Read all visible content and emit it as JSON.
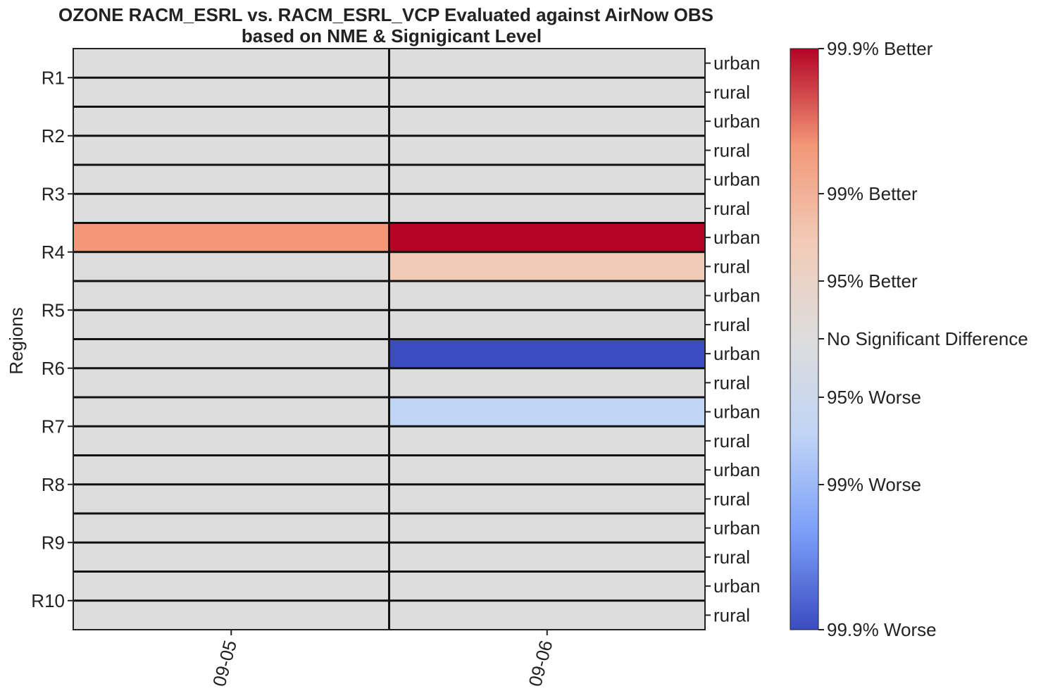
{
  "chart_data": {
    "type": "heatmap",
    "title": "OZONE RACM_ESRL vs. RACM_ESRL_VCP Evaluated against AirNow OBS",
    "subtitle": "based on NME & Signigicant Level",
    "ylabel": "Regions",
    "x_categories": [
      "09-05",
      "09-06"
    ],
    "regions": [
      "R1",
      "R2",
      "R3",
      "R4",
      "R5",
      "R6",
      "R7",
      "R8",
      "R9",
      "R10"
    ],
    "row_types": [
      "urban",
      "rural"
    ],
    "levels": [
      {
        "value": -3,
        "label": "99.9% Worse",
        "color": "#3b4cc0"
      },
      {
        "value": -2,
        "label": "99% Worse",
        "color": "#7b9ff9"
      },
      {
        "value": -1,
        "label": "95% Worse",
        "color": "#c0d4f5"
      },
      {
        "value": 0,
        "label": "No Significant Difference",
        "color": "#dddddd"
      },
      {
        "value": 1,
        "label": "95% Better",
        "color": "#f2cbb7"
      },
      {
        "value": 2,
        "label": "99% Better",
        "color": "#f39778"
      },
      {
        "value": 3,
        "label": "99.9% Better",
        "color": "#b40426"
      }
    ],
    "colorbar_ticks": [
      {
        "value": 3,
        "label": "99.9% Better"
      },
      {
        "value": 2,
        "label": "99% Better"
      },
      {
        "value": 1,
        "label": "95% Better"
      },
      {
        "value": 0,
        "label": "No Significant Difference"
      },
      {
        "value": -1,
        "label": "95% Worse"
      },
      {
        "value": -2,
        "label": "99% Worse"
      },
      {
        "value": -3,
        "label": "99.9% Worse"
      }
    ],
    "colorbar_range": [
      -3,
      3
    ],
    "rows": [
      {
        "region": "R1",
        "type": "urban",
        "values": [
          0,
          0
        ]
      },
      {
        "region": "R1",
        "type": "rural",
        "values": [
          0,
          0
        ]
      },
      {
        "region": "R2",
        "type": "urban",
        "values": [
          0,
          0
        ]
      },
      {
        "region": "R2",
        "type": "rural",
        "values": [
          0,
          0
        ]
      },
      {
        "region": "R3",
        "type": "urban",
        "values": [
          0,
          0
        ]
      },
      {
        "region": "R3",
        "type": "rural",
        "values": [
          0,
          0
        ]
      },
      {
        "region": "R4",
        "type": "urban",
        "values": [
          2,
          3
        ]
      },
      {
        "region": "R4",
        "type": "rural",
        "values": [
          0,
          1
        ]
      },
      {
        "region": "R5",
        "type": "urban",
        "values": [
          0,
          0
        ]
      },
      {
        "region": "R5",
        "type": "rural",
        "values": [
          0,
          0
        ]
      },
      {
        "region": "R6",
        "type": "urban",
        "values": [
          0,
          -3
        ]
      },
      {
        "region": "R6",
        "type": "rural",
        "values": [
          0,
          0
        ]
      },
      {
        "region": "R7",
        "type": "urban",
        "values": [
          0,
          -1
        ]
      },
      {
        "region": "R7",
        "type": "rural",
        "values": [
          0,
          0
        ]
      },
      {
        "region": "R8",
        "type": "urban",
        "values": [
          0,
          0
        ]
      },
      {
        "region": "R8",
        "type": "rural",
        "values": [
          0,
          0
        ]
      },
      {
        "region": "R9",
        "type": "urban",
        "values": [
          0,
          0
        ]
      },
      {
        "region": "R9",
        "type": "rural",
        "values": [
          0,
          0
        ]
      },
      {
        "region": "R10",
        "type": "urban",
        "values": [
          0,
          0
        ]
      },
      {
        "region": "R10",
        "type": "rural",
        "values": [
          0,
          0
        ]
      }
    ]
  }
}
